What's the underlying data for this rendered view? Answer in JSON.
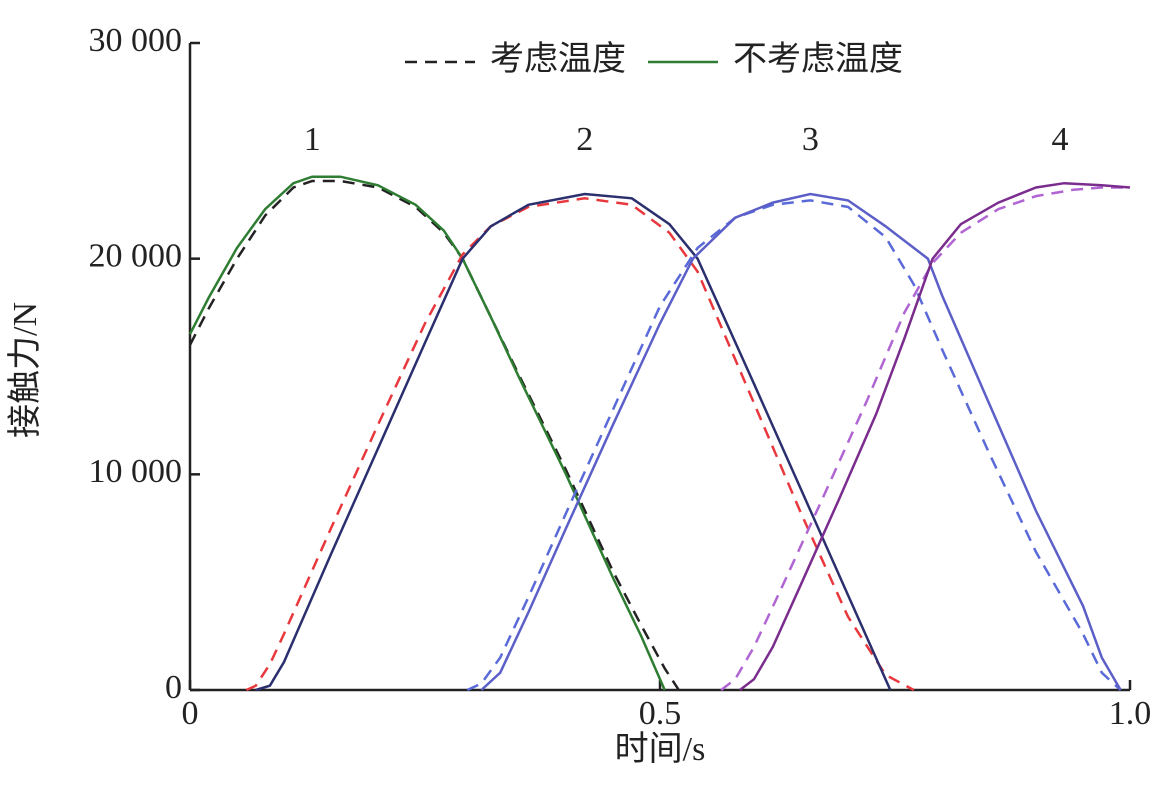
{
  "chart_data": {
    "type": "line",
    "xlabel": "时间/s",
    "ylabel": "接触力/N",
    "xlim": [
      0,
      1.0
    ],
    "ylim": [
      0,
      30000
    ],
    "xticks": [
      0,
      0.5,
      {
        "value": 1.0,
        "label": "1.0"
      }
    ],
    "yticks": [
      {
        "value": 0,
        "label": "0"
      },
      {
        "value": 10000,
        "label": "10 000"
      },
      {
        "value": 20000,
        "label": "20 000"
      },
      {
        "value": 30000,
        "label": "30 000"
      }
    ],
    "series": [
      {
        "name": "考虑温度",
        "color": "#222222",
        "dashed": true
      },
      {
        "name": "不考虑温度",
        "color": "#2e7d32",
        "dashed": false
      }
    ],
    "curves": [
      {
        "label": "1",
        "considered": {
          "color": "#222222",
          "x": [
            0,
            0.02,
            0.05,
            0.08,
            0.11,
            0.13,
            0.16,
            0.2,
            0.24,
            0.27,
            0.29,
            0.32,
            0.35,
            0.4,
            0.45,
            0.48,
            0.505,
            0.52
          ],
          "values": [
            16000,
            17700,
            20000,
            22000,
            23300,
            23600,
            23600,
            23300,
            22400,
            21200,
            20000,
            17300,
            14600,
            10200,
            5500,
            3000,
            1000,
            0
          ]
        },
        "ignored": {
          "color": "#2e7d32",
          "x": [
            0,
            0.02,
            0.05,
            0.08,
            0.11,
            0.13,
            0.16,
            0.2,
            0.24,
            0.27,
            0.29,
            0.32,
            0.35,
            0.4,
            0.45,
            0.48,
            0.505
          ],
          "values": [
            16500,
            18200,
            20500,
            22300,
            23500,
            23800,
            23800,
            23400,
            22500,
            21300,
            20000,
            17300,
            14500,
            10000,
            5200,
            2500,
            0
          ]
        }
      },
      {
        "label": "2",
        "considered": {
          "color": "#e8383d",
          "x": [
            0.06,
            0.07,
            0.085,
            0.1,
            0.15,
            0.2,
            0.25,
            0.29,
            0.32,
            0.36,
            0.42,
            0.47,
            0.51,
            0.54,
            0.6,
            0.65,
            0.7,
            0.74,
            0.77
          ],
          "values": [
            0,
            200,
            1200,
            2600,
            7500,
            12300,
            17000,
            20200,
            21500,
            22400,
            22800,
            22500,
            21200,
            19400,
            13300,
            8200,
            3400,
            700,
            0
          ]
        },
        "ignored": {
          "color": "#2b2f6e",
          "x": [
            0.07,
            0.085,
            0.1,
            0.15,
            0.2,
            0.25,
            0.29,
            0.32,
            0.36,
            0.42,
            0.47,
            0.51,
            0.54,
            0.6,
            0.65,
            0.7,
            0.745
          ],
          "values": [
            0,
            200,
            1300,
            6300,
            11200,
            16100,
            20000,
            21500,
            22500,
            23000,
            22800,
            21600,
            20000,
            14200,
            9300,
            4400,
            0
          ]
        }
      },
      {
        "label": "3",
        "considered": {
          "color": "#5a6ad8",
          "x": [
            0.295,
            0.31,
            0.33,
            0.36,
            0.4,
            0.45,
            0.5,
            0.54,
            0.58,
            0.62,
            0.66,
            0.7,
            0.74,
            0.77,
            0.8,
            0.85,
            0.9,
            0.95,
            0.97,
            0.99
          ],
          "values": [
            0,
            300,
            1500,
            4300,
            8200,
            13000,
            17800,
            20500,
            21900,
            22500,
            22700,
            22400,
            21000,
            18800,
            15800,
            11000,
            6400,
            2600,
            800,
            0
          ]
        },
        "ignored": {
          "color": "#5b5fc7",
          "x": [
            0.31,
            0.33,
            0.36,
            0.4,
            0.45,
            0.5,
            0.535,
            0.58,
            0.62,
            0.66,
            0.7,
            0.74,
            0.785,
            0.8,
            0.85,
            0.9,
            0.95,
            0.97,
            0.99
          ],
          "values": [
            0,
            800,
            3600,
            7500,
            12300,
            17000,
            20000,
            21900,
            22600,
            23000,
            22700,
            21500,
            20000,
            18300,
            13300,
            8300,
            3900,
            1500,
            0
          ]
        }
      },
      {
        "label": "4",
        "considered": {
          "color": "#b065d2",
          "x": [
            0.565,
            0.58,
            0.6,
            0.63,
            0.67,
            0.72,
            0.76,
            0.79,
            0.82,
            0.86,
            0.9,
            0.94,
            0.97,
            1.0
          ],
          "values": [
            0,
            500,
            2000,
            4800,
            8600,
            13400,
            17500,
            19800,
            21200,
            22300,
            22900,
            23200,
            23300,
            23300
          ]
        },
        "ignored": {
          "color": "#7b2d8e",
          "x": [
            0.585,
            0.6,
            0.62,
            0.65,
            0.69,
            0.73,
            0.76,
            0.79,
            0.82,
            0.86,
            0.9,
            0.93,
            0.97,
            1.0
          ],
          "values": [
            0,
            500,
            2000,
            4900,
            8800,
            12800,
            16300,
            20000,
            21600,
            22600,
            23300,
            23500,
            23400,
            23300
          ]
        }
      }
    ]
  }
}
